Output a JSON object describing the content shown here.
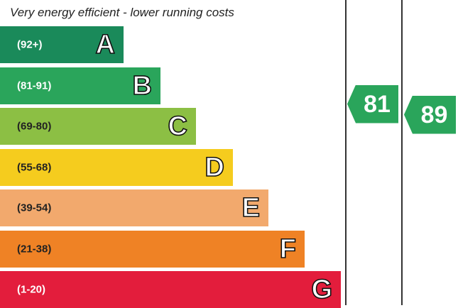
{
  "header": "Very energy efficient - lower running costs",
  "chart_data": {
    "type": "bar",
    "title": "Very energy efficient - lower running costs",
    "categories": [
      "A",
      "B",
      "C",
      "D",
      "E",
      "F",
      "G"
    ],
    "ranges": [
      "(92+)",
      "(81-91)",
      "(69-80)",
      "(55-68)",
      "(39-54)",
      "(21-38)",
      "(1-20)"
    ],
    "range_min": [
      92,
      81,
      69,
      55,
      39,
      21,
      1
    ],
    "colors": [
      "#1a8a5a",
      "#2aa55b",
      "#8cbf44",
      "#f5cc1e",
      "#f2a96d",
      "#ef8225",
      "#e31d3c"
    ],
    "range_text_colors": [
      "#ffffff",
      "#ffffff",
      "#222222",
      "#222222",
      "#222222",
      "#222222",
      "#ffffff"
    ],
    "current": {
      "value": 81,
      "color": "#2aa55b"
    },
    "potential": {
      "value": 89,
      "color": "#2aa55b"
    }
  }
}
